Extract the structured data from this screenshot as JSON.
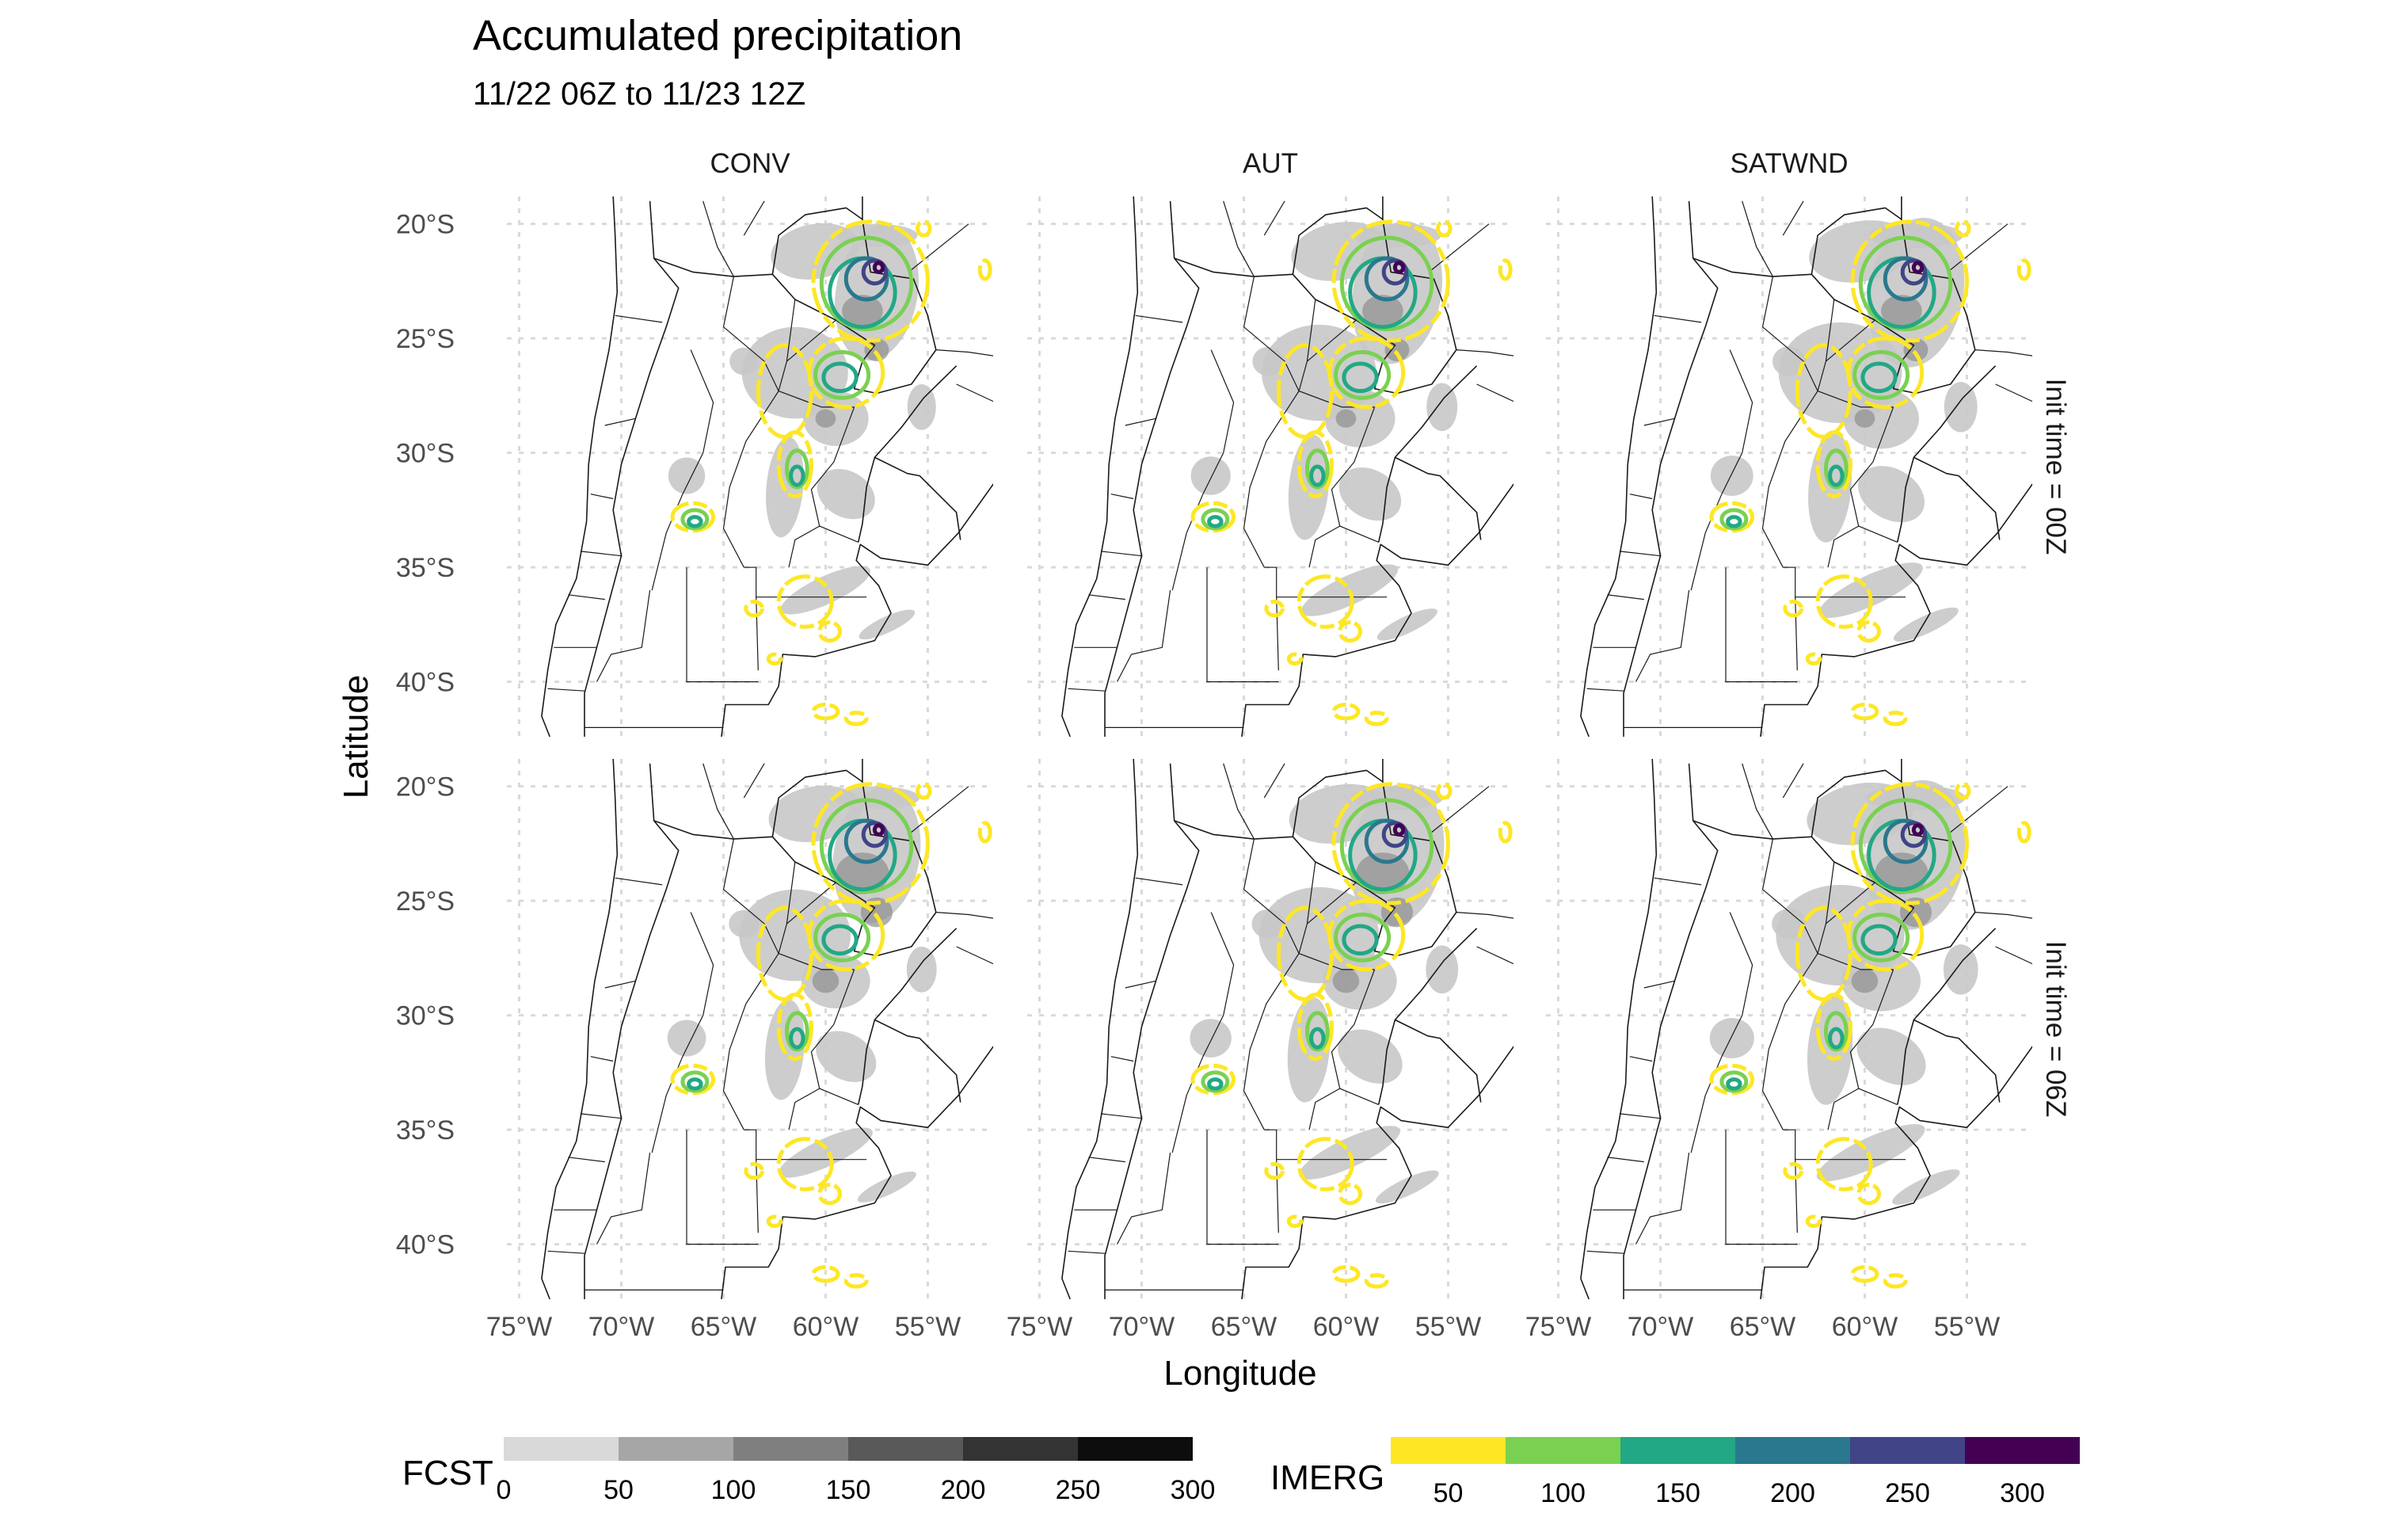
{
  "title": "Accumulated precipitation",
  "subtitle": "11/22 06Z to 11/23 12Z",
  "x_axis_title": "Longitude",
  "y_axis_title": "Latitude",
  "columns": [
    "CONV",
    "AUT",
    "SATWND"
  ],
  "rows": [
    "Init time = 00Z",
    "Init time = 06Z"
  ],
  "lat_ticks": [
    {
      "value": -20,
      "label": "20°S"
    },
    {
      "value": -25,
      "label": "25°S"
    },
    {
      "value": -30,
      "label": "30°S"
    },
    {
      "value": -35,
      "label": "35°S"
    },
    {
      "value": -40,
      "label": "40°S"
    }
  ],
  "lon_ticks": [
    {
      "value": -75,
      "label": "75°W"
    },
    {
      "value": -70,
      "label": "70°W"
    },
    {
      "value": -65,
      "label": "65°W"
    },
    {
      "value": -60,
      "label": "60°W"
    },
    {
      "value": -55,
      "label": "55°W"
    }
  ],
  "map_extent": {
    "lon": [
      -75.6,
      -51.8
    ],
    "lat": [
      -42.4,
      -18.8
    ]
  },
  "colors": {
    "boundary": "#1a1a1a",
    "grid": "#d9d9d9",
    "fcst_fill": "#c8c8c8",
    "fcst_dark": "#8f8f8f",
    "imerg_levels": [
      "#FDE725",
      "#7AD151",
      "#22A884",
      "#2A788E",
      "#414487",
      "#440154"
    ]
  },
  "legend_fcst": {
    "title": "FCST",
    "colors": [
      "#d9d9d9",
      "#a6a6a6",
      "#7f7f7f",
      "#595959",
      "#333333",
      "#0d0d0d"
    ],
    "labels": [
      "0",
      "50",
      "100",
      "150",
      "200",
      "250",
      "300"
    ]
  },
  "legend_imerg": {
    "title": "IMERG",
    "colors": [
      "#FDE725",
      "#7AD151",
      "#22A884",
      "#2A788E",
      "#414487",
      "#440154"
    ],
    "labels": [
      "50",
      "100",
      "150",
      "200",
      "250",
      "300"
    ]
  }
}
